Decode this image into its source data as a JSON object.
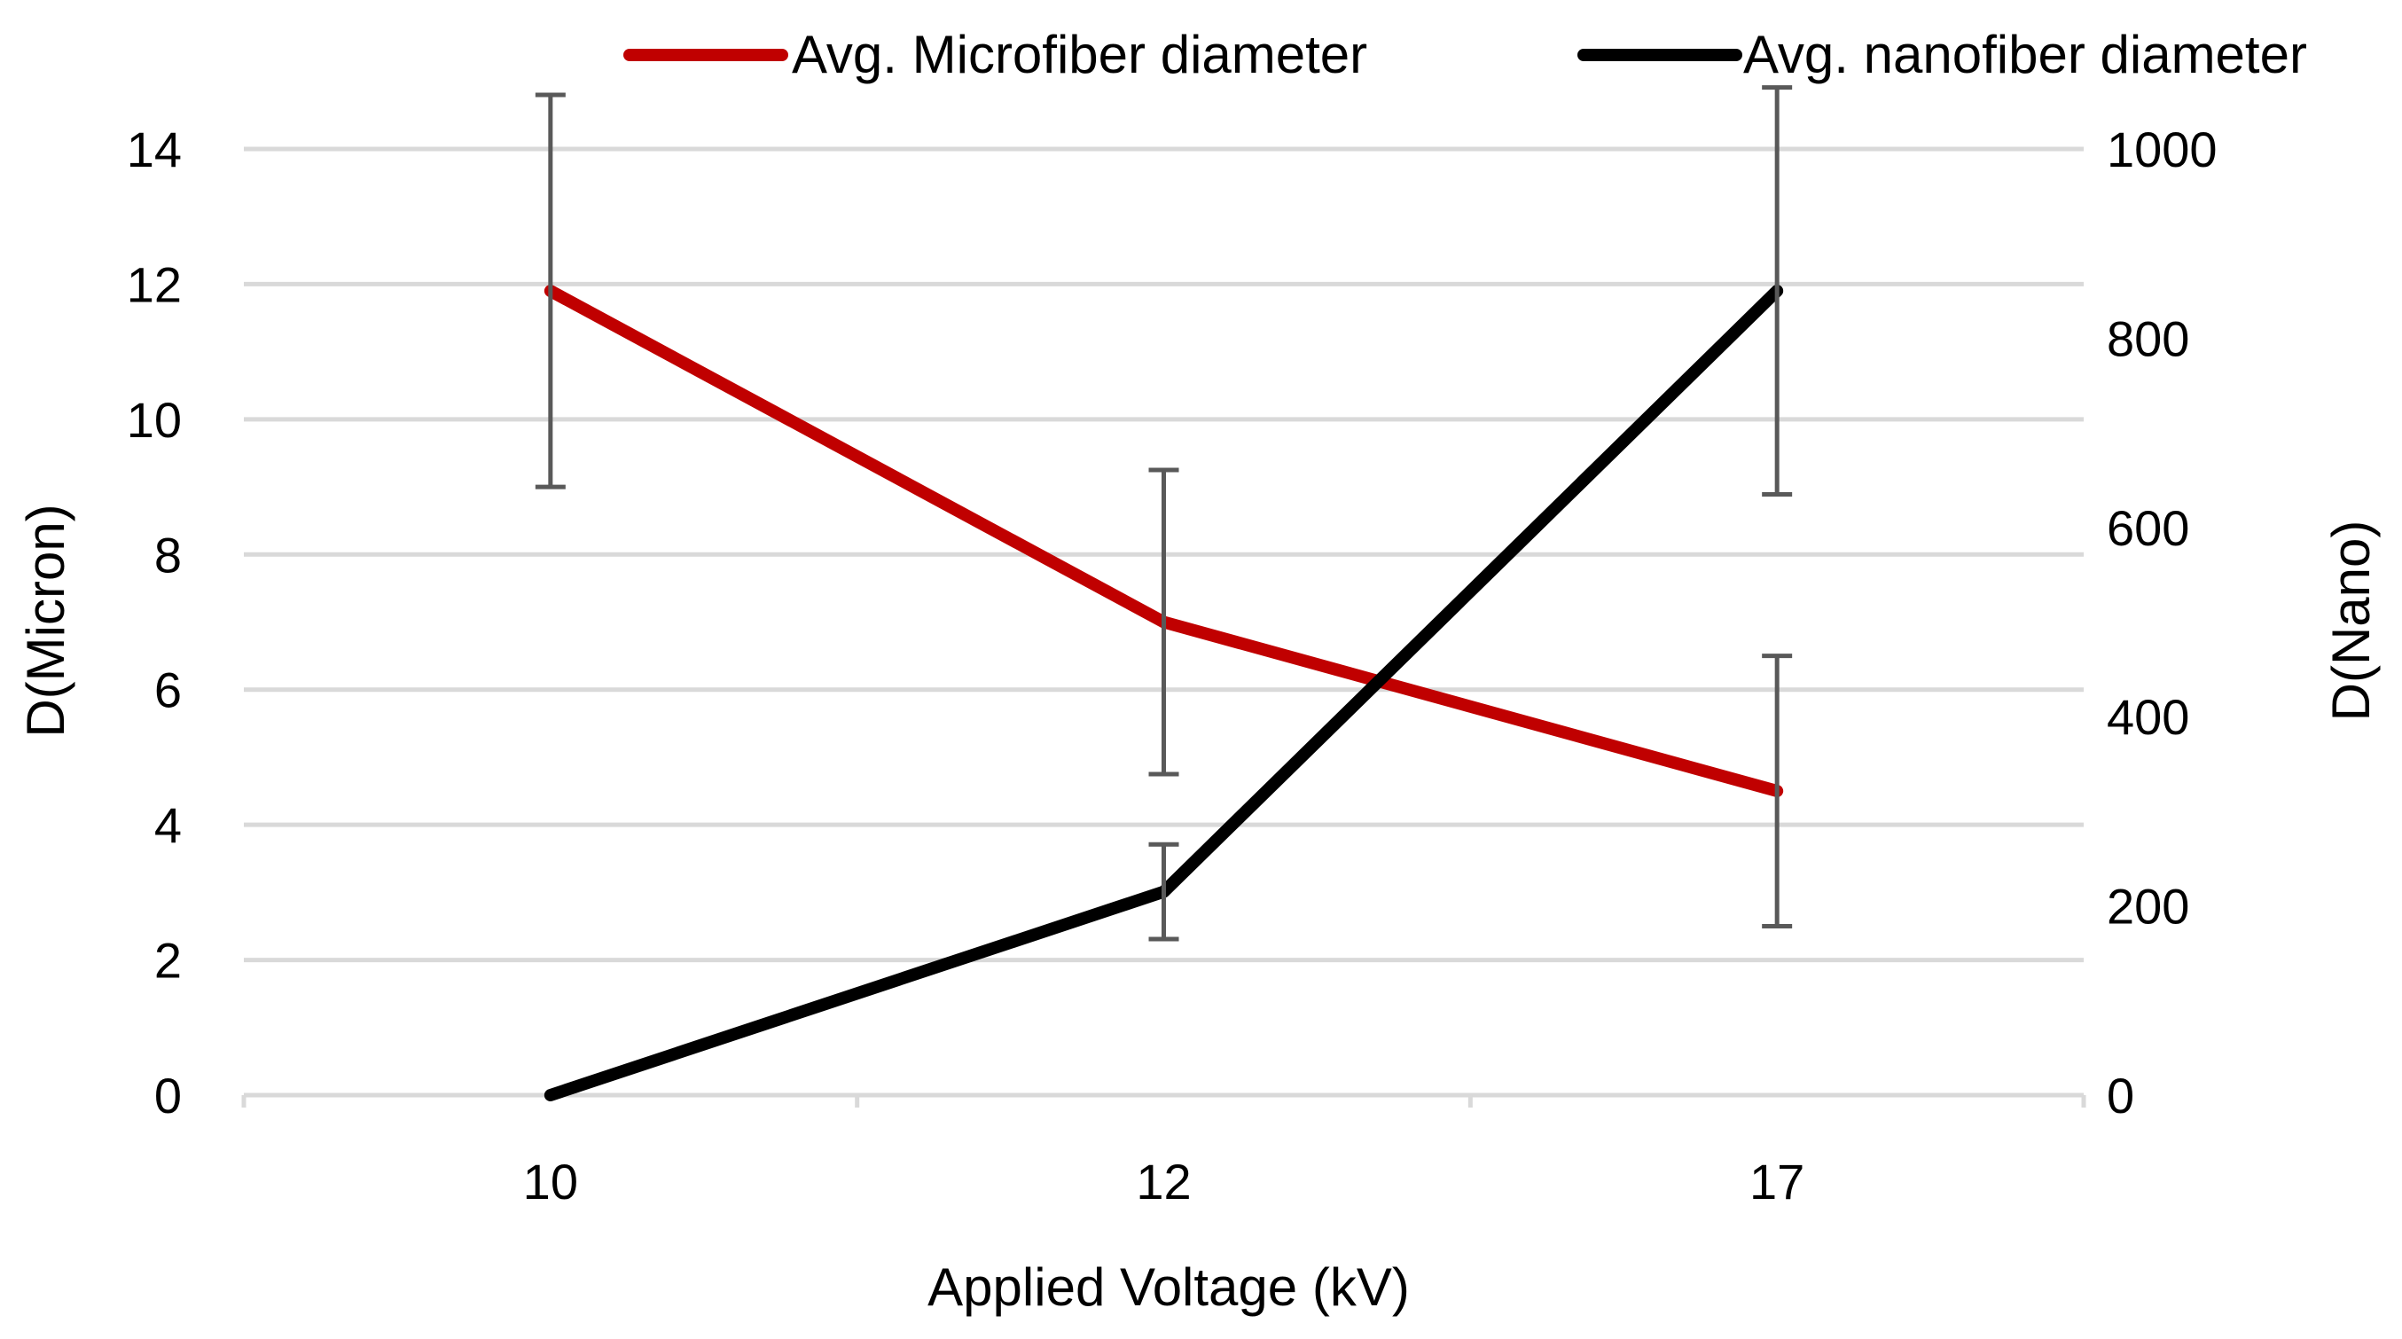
{
  "chart_data": {
    "type": "line",
    "categories": [
      "10",
      "12",
      "17"
    ],
    "xlabel": "Applied Voltage (kV)",
    "y_left": {
      "label": "D(Micron)",
      "lim": [
        0,
        14
      ],
      "ticks": [
        0,
        2,
        4,
        6,
        8,
        10,
        12,
        14
      ]
    },
    "y_right": {
      "label": "D(Nano)",
      "lim": [
        0,
        1000
      ],
      "ticks": [
        0,
        200,
        400,
        600,
        800,
        1000
      ]
    },
    "grid": true,
    "legend_position": "top",
    "series": [
      {
        "name": "Avg. Microfiber diameter",
        "axis": "left",
        "color": "#c00000",
        "values": [
          11.9,
          7.0,
          4.5
        ],
        "error": [
          2.9,
          2.25,
          2.0
        ]
      },
      {
        "name": "Avg. nanofiber diameter",
        "axis": "right",
        "color": "#000000",
        "values": [
          0,
          215,
          850
        ],
        "error": [
          0,
          50,
          215
        ]
      }
    ]
  }
}
